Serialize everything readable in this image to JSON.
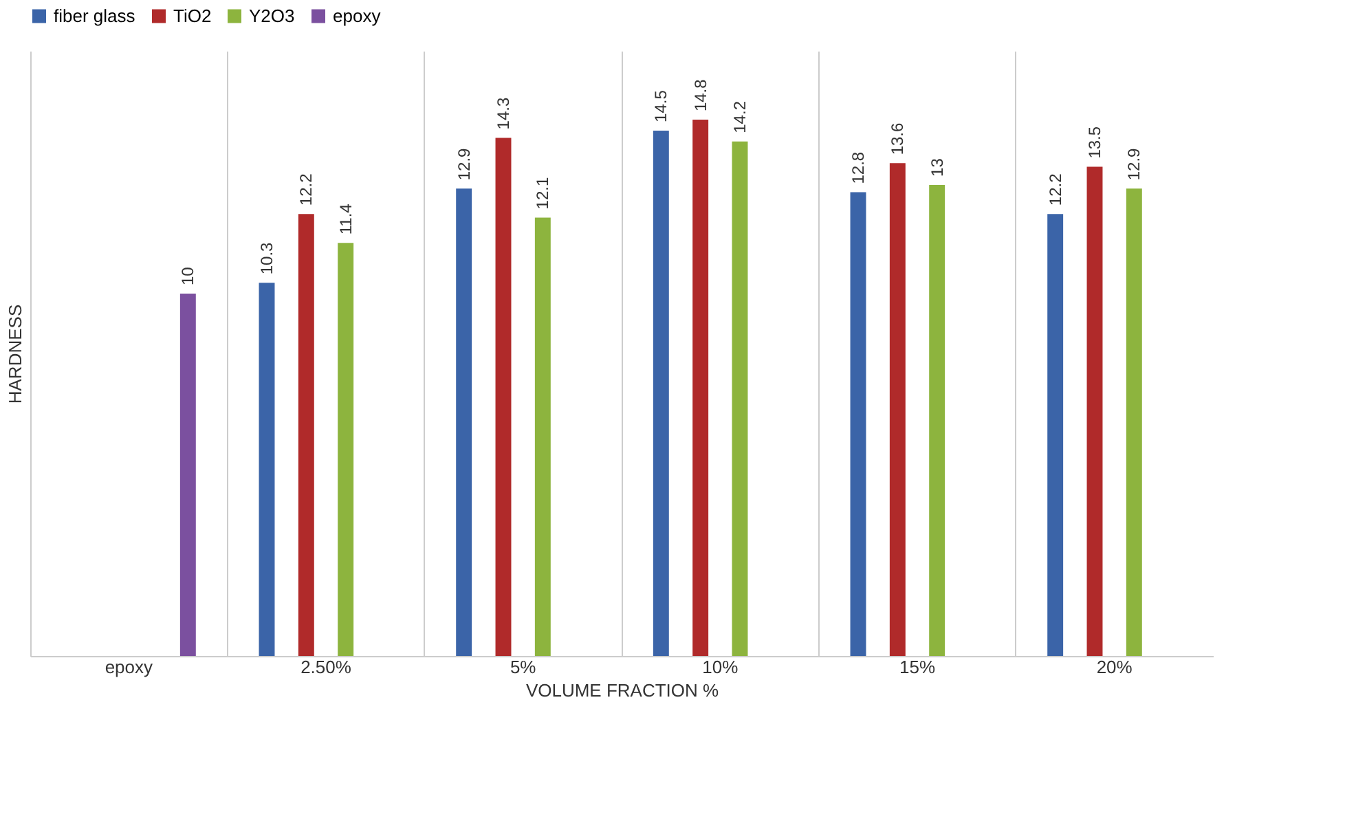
{
  "chart_data": {
    "type": "bar",
    "xlabel": "VOLUME FRACTION %",
    "ylabel": "HARDNESS",
    "categories": [
      "epoxy",
      "2.50%",
      "5%",
      "10%",
      "15%",
      "20%"
    ],
    "series": [
      {
        "name": "fiber glass",
        "color": "#3b64a8",
        "values": [
          null,
          10.3,
          12.9,
          14.5,
          12.8,
          12.2
        ]
      },
      {
        "name": "TiO2",
        "color": "#b02a2a",
        "values": [
          null,
          12.2,
          14.3,
          14.8,
          13.6,
          13.5
        ]
      },
      {
        "name": "Y2O3",
        "color": "#8db43e",
        "values": [
          null,
          11.4,
          12.1,
          14.2,
          13,
          12.9
        ]
      },
      {
        "name": "epoxy",
        "color": "#7b509f",
        "values": [
          10,
          null,
          null,
          null,
          null,
          null
        ]
      }
    ],
    "ylim": [
      0,
      16.7
    ],
    "data_labels": true,
    "legend": "top",
    "grid": "x",
    "tick_labels": "x"
  }
}
